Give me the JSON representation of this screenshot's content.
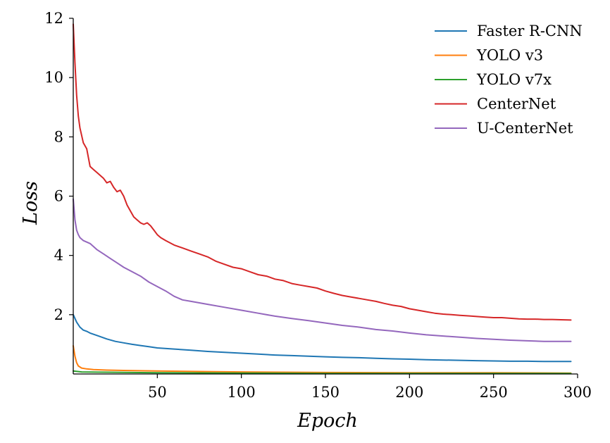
{
  "chart_data": {
    "type": "line",
    "title": "",
    "xlabel": "Epoch",
    "ylabel": "Loss",
    "xlim": [
      0,
      300
    ],
    "ylim": [
      0,
      12
    ],
    "xticks": [
      50,
      100,
      150,
      200,
      250,
      300
    ],
    "yticks": [
      2,
      4,
      6,
      8,
      10,
      12
    ],
    "grid": false,
    "legend_position": "top-right",
    "series": [
      {
        "name": "Faster R-CNN",
        "color": "#1f77b4",
        "x": [
          0,
          2,
          4,
          6,
          8,
          10,
          15,
          20,
          25,
          30,
          35,
          40,
          45,
          50,
          60,
          70,
          80,
          90,
          100,
          110,
          120,
          130,
          140,
          150,
          160,
          170,
          180,
          190,
          200,
          210,
          220,
          230,
          240,
          250,
          260,
          270,
          280,
          290,
          296
        ],
        "y": [
          2.0,
          1.75,
          1.58,
          1.48,
          1.44,
          1.38,
          1.28,
          1.18,
          1.1,
          1.05,
          1.0,
          0.96,
          0.92,
          0.88,
          0.84,
          0.8,
          0.76,
          0.73,
          0.7,
          0.67,
          0.64,
          0.62,
          0.6,
          0.58,
          0.56,
          0.55,
          0.53,
          0.51,
          0.5,
          0.48,
          0.47,
          0.46,
          0.45,
          0.44,
          0.43,
          0.43,
          0.42,
          0.42,
          0.42
        ]
      },
      {
        "name": "YOLO v3",
        "color": "#ff7f0e",
        "x": [
          0,
          1,
          2,
          3,
          5,
          8,
          12,
          20,
          30,
          50,
          80,
          100,
          150,
          200,
          250,
          296
        ],
        "y": [
          0.95,
          0.6,
          0.38,
          0.27,
          0.2,
          0.17,
          0.15,
          0.13,
          0.12,
          0.1,
          0.08,
          0.07,
          0.05,
          0.04,
          0.04,
          0.03
        ]
      },
      {
        "name": "YOLO v7x",
        "color": "#2ca02c",
        "x": [
          0,
          5,
          50,
          100,
          150,
          200,
          250,
          296
        ],
        "y": [
          0.1,
          0.07,
          0.04,
          0.03,
          0.02,
          0.02,
          0.02,
          0.02
        ]
      },
      {
        "name": "CenterNet",
        "color": "#d62728",
        "x": [
          0,
          1,
          2,
          3,
          4,
          6,
          8,
          10,
          12,
          14,
          16,
          18,
          20,
          22,
          24,
          26,
          28,
          30,
          32,
          34,
          36,
          38,
          40,
          42,
          44,
          46,
          48,
          50,
          52,
          55,
          60,
          65,
          70,
          75,
          80,
          85,
          90,
          95,
          100,
          105,
          110,
          115,
          120,
          125,
          130,
          135,
          140,
          145,
          150,
          155,
          160,
          165,
          170,
          175,
          180,
          185,
          190,
          195,
          200,
          205,
          210,
          215,
          220,
          225,
          230,
          235,
          240,
          245,
          250,
          255,
          260,
          265,
          270,
          275,
          280,
          285,
          290,
          296
        ],
        "y": [
          11.8,
          10.5,
          9.4,
          8.7,
          8.3,
          7.8,
          7.6,
          7.0,
          6.9,
          6.8,
          6.7,
          6.6,
          6.45,
          6.5,
          6.3,
          6.15,
          6.2,
          6.0,
          5.7,
          5.5,
          5.3,
          5.2,
          5.1,
          5.05,
          5.1,
          5.0,
          4.85,
          4.7,
          4.6,
          4.5,
          4.35,
          4.25,
          4.15,
          4.05,
          3.95,
          3.8,
          3.7,
          3.6,
          3.55,
          3.45,
          3.35,
          3.3,
          3.2,
          3.15,
          3.05,
          3.0,
          2.95,
          2.9,
          2.8,
          2.72,
          2.65,
          2.6,
          2.55,
          2.5,
          2.45,
          2.38,
          2.32,
          2.28,
          2.2,
          2.15,
          2.1,
          2.05,
          2.02,
          2.0,
          1.98,
          1.96,
          1.94,
          1.92,
          1.9,
          1.9,
          1.88,
          1.86,
          1.85,
          1.85,
          1.84,
          1.84,
          1.83,
          1.82
        ]
      },
      {
        "name": "U-CenterNet",
        "color": "#9467bd",
        "x": [
          0,
          1,
          2,
          3,
          4,
          6,
          8,
          10,
          14,
          18,
          22,
          26,
          30,
          35,
          40,
          45,
          50,
          55,
          60,
          65,
          70,
          80,
          90,
          100,
          110,
          120,
          130,
          140,
          150,
          160,
          170,
          180,
          190,
          200,
          210,
          220,
          230,
          240,
          250,
          260,
          270,
          280,
          290,
          296
        ],
        "y": [
          5.9,
          5.2,
          4.85,
          4.7,
          4.6,
          4.5,
          4.45,
          4.4,
          4.2,
          4.05,
          3.9,
          3.75,
          3.6,
          3.45,
          3.3,
          3.1,
          2.95,
          2.8,
          2.62,
          2.5,
          2.45,
          2.35,
          2.25,
          2.15,
          2.05,
          1.95,
          1.87,
          1.8,
          1.72,
          1.64,
          1.58,
          1.5,
          1.45,
          1.38,
          1.32,
          1.28,
          1.24,
          1.2,
          1.17,
          1.14,
          1.12,
          1.1,
          1.1,
          1.1
        ]
      }
    ]
  }
}
